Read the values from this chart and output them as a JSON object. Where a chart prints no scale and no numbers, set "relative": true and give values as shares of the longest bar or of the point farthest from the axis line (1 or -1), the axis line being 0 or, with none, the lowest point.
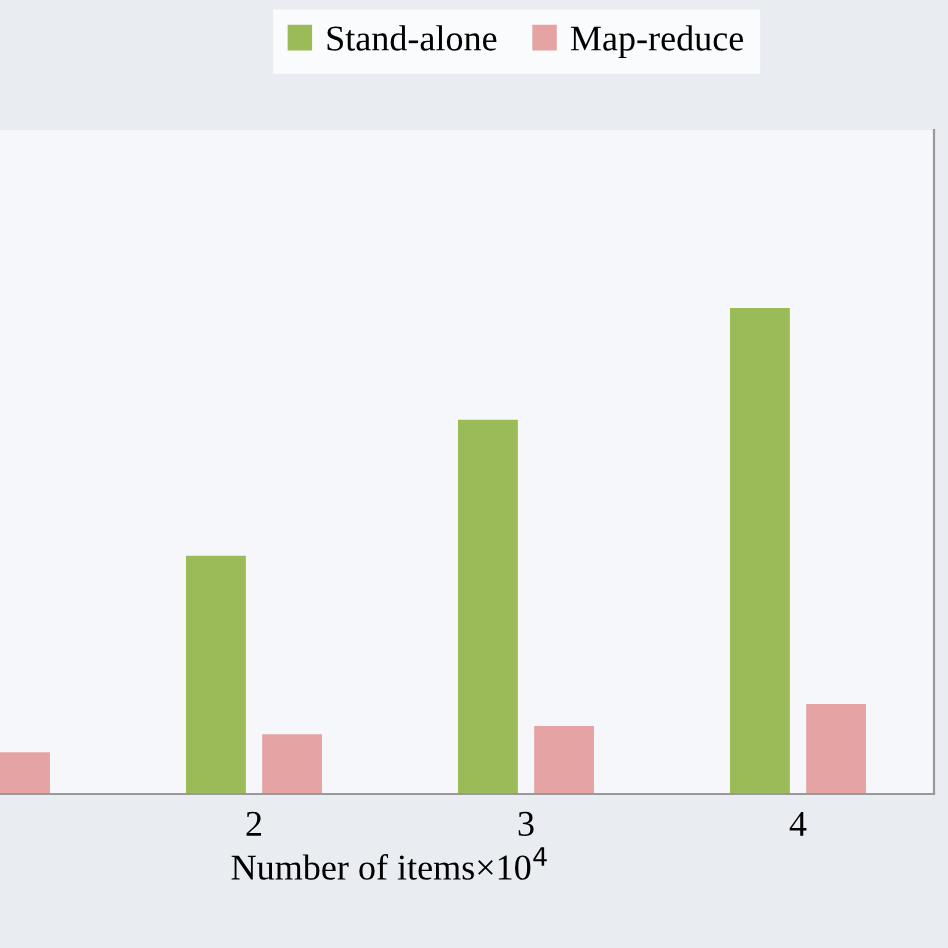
{
  "chart_data": {
    "type": "bar",
    "xlabel": "Number of items×10$^{4}$",
    "relative": true,
    "categories": [
      null,
      "2",
      "3",
      "4"
    ],
    "series": [
      {
        "name": "Stand-alone",
        "color": "#9bbb59",
        "values": [
          null,
          0.49,
          0.77,
          1
        ]
      },
      {
        "name": "Map-reduce",
        "color": "#e6a3a3",
        "values": [
          0.086,
          0.123,
          0.14,
          0.185
        ]
      }
    ],
    "legend": "top",
    "grid": false
  }
}
